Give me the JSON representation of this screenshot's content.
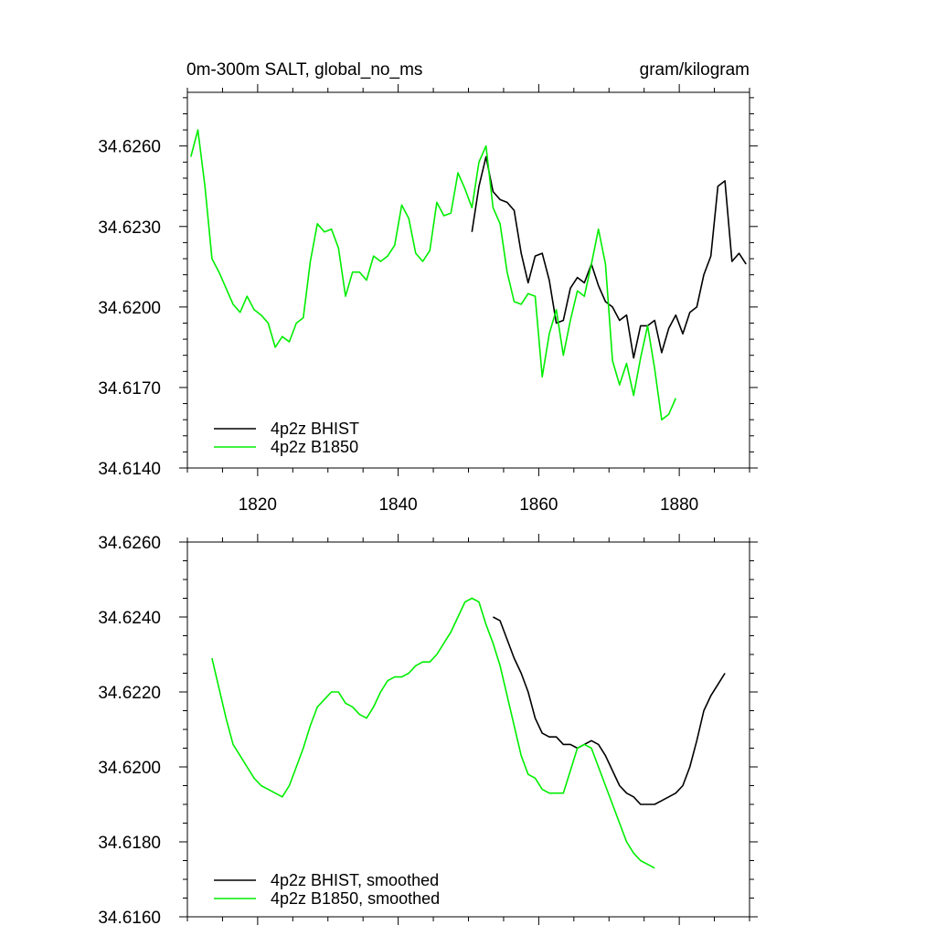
{
  "figure": {
    "title_left": "0m-300m SALT, global_no_ms",
    "title_right": "gram/kilogram"
  },
  "colors": {
    "bhist": "#000000",
    "b1850": "#00ee00",
    "axis": "#000000"
  },
  "chart_data": [
    {
      "type": "line",
      "title": "0m-300m SALT, global_no_ms",
      "units": "gram/kilogram",
      "xlim": [
        1810,
        1890
      ],
      "ylim": [
        34.614,
        34.628
      ],
      "x_ticks": [
        1820,
        1840,
        1860,
        1880
      ],
      "x_tick_labels": [
        "1820",
        "1840",
        "1860",
        "1880"
      ],
      "y_ticks": [
        34.614,
        34.617,
        34.62,
        34.623,
        34.626
      ],
      "y_tick_labels": [
        "34.6140",
        "34.6170",
        "34.6200",
        "34.6230",
        "34.6260"
      ],
      "legend": [
        "4p2z BHIST",
        "4p2z B1850"
      ],
      "legend_position": "bottom-left",
      "series": [
        {
          "name": "4p2z BHIST",
          "color": "#000000",
          "x": [
            1850.5,
            1851.5,
            1852.5,
            1853.5,
            1854.5,
            1855.5,
            1856.5,
            1857.5,
            1858.5,
            1859.5,
            1860.5,
            1861.5,
            1862.5,
            1863.5,
            1864.5,
            1865.5,
            1866.5,
            1867.5,
            1868.5,
            1869.5,
            1870.5,
            1871.5,
            1872.5,
            1873.5,
            1874.5,
            1875.5,
            1876.5,
            1877.5,
            1878.5,
            1879.5,
            1880.5,
            1881.5,
            1882.5,
            1883.5,
            1884.5,
            1885.5,
            1886.5,
            1887.5,
            1888.5,
            1889.5
          ],
          "values": [
            34.6228,
            34.6245,
            34.6256,
            34.6243,
            34.624,
            34.6239,
            34.6236,
            34.622,
            34.6209,
            34.6219,
            34.622,
            34.621,
            34.6194,
            34.6195,
            34.6207,
            34.6211,
            34.6209,
            34.6216,
            34.6208,
            34.6202,
            34.62,
            34.6195,
            34.6197,
            34.6181,
            34.6193,
            34.6193,
            34.6195,
            34.6183,
            34.6192,
            34.6197,
            34.619,
            34.6198,
            34.62,
            34.6212,
            34.6219,
            34.6245,
            34.6247,
            34.6217,
            34.622,
            34.6216
          ]
        },
        {
          "name": "4p2z B1850",
          "color": "#00ee00",
          "x": [
            1810.5,
            1811.5,
            1812.5,
            1813.5,
            1814.5,
            1815.5,
            1816.5,
            1817.5,
            1818.5,
            1819.5,
            1820.5,
            1821.5,
            1822.5,
            1823.5,
            1824.5,
            1825.5,
            1826.5,
            1827.5,
            1828.5,
            1829.5,
            1830.5,
            1831.5,
            1832.5,
            1833.5,
            1834.5,
            1835.5,
            1836.5,
            1837.5,
            1838.5,
            1839.5,
            1840.5,
            1841.5,
            1842.5,
            1843.5,
            1844.5,
            1845.5,
            1846.5,
            1847.5,
            1848.5,
            1849.5,
            1850.5,
            1851.5,
            1852.5,
            1853.5,
            1854.5,
            1855.5,
            1856.5,
            1857.5,
            1858.5,
            1859.5,
            1860.5,
            1861.5,
            1862.5,
            1863.5,
            1864.5,
            1865.5,
            1866.5,
            1867.5,
            1868.5,
            1869.5,
            1870.5,
            1871.5,
            1872.5,
            1873.5,
            1874.5,
            1875.5,
            1876.5,
            1877.5,
            1878.5,
            1879.5
          ],
          "values": [
            34.6256,
            34.6266,
            34.6245,
            34.6218,
            34.6213,
            34.6207,
            34.6201,
            34.6198,
            34.6204,
            34.6199,
            34.6197,
            34.6194,
            34.6185,
            34.6189,
            34.6187,
            34.6194,
            34.6196,
            34.6217,
            34.6231,
            34.6228,
            34.6229,
            34.6222,
            34.6204,
            34.6213,
            34.6213,
            34.621,
            34.6219,
            34.6217,
            34.6219,
            34.6223,
            34.6238,
            34.6233,
            34.622,
            34.6217,
            34.6221,
            34.6239,
            34.6234,
            34.6235,
            34.625,
            34.6244,
            34.6237,
            34.6254,
            34.626,
            34.6237,
            34.6231,
            34.6213,
            34.6202,
            34.6201,
            34.6205,
            34.6204,
            34.6174,
            34.619,
            34.6199,
            34.6182,
            34.6195,
            34.6206,
            34.6204,
            34.6216,
            34.6229,
            34.6216,
            34.618,
            34.6171,
            34.6179,
            34.6167,
            34.6181,
            34.6193,
            34.6177,
            34.6158,
            34.616,
            34.6166
          ]
        }
      ]
    },
    {
      "type": "line",
      "xlim": [
        1810,
        1890
      ],
      "ylim": [
        34.616,
        34.626
      ],
      "x_ticks": [
        1820,
        1840,
        1860,
        1880
      ],
      "x_tick_labels": [],
      "y_ticks": [
        34.616,
        34.618,
        34.62,
        34.622,
        34.624,
        34.626
      ],
      "y_tick_labels": [
        "34.6160",
        "34.6180",
        "34.6200",
        "34.6220",
        "34.6240",
        "34.6260"
      ],
      "legend": [
        "4p2z BHIST, smoothed",
        "4p2z B1850, smoothed"
      ],
      "legend_position": "bottom-left",
      "series": [
        {
          "name": "4p2z BHIST, smoothed",
          "color": "#000000",
          "x": [
            1853.5,
            1854.5,
            1855.5,
            1856.5,
            1857.5,
            1858.5,
            1859.5,
            1860.5,
            1861.5,
            1862.5,
            1863.5,
            1864.5,
            1865.5,
            1866.5,
            1867.5,
            1868.5,
            1869.5,
            1870.5,
            1871.5,
            1872.5,
            1873.5,
            1874.5,
            1875.5,
            1876.5,
            1877.5,
            1878.5,
            1879.5,
            1880.5,
            1881.5,
            1882.5,
            1883.5,
            1884.5,
            1885.5,
            1886.5
          ],
          "values": [
            34.624,
            34.6239,
            34.6234,
            34.6229,
            34.6225,
            34.622,
            34.6213,
            34.6209,
            34.6208,
            34.6208,
            34.6206,
            34.6206,
            34.6205,
            34.6206,
            34.6207,
            34.6206,
            34.6203,
            34.6199,
            34.6195,
            34.6193,
            34.6192,
            34.619,
            34.619,
            34.619,
            34.6191,
            34.6192,
            34.6193,
            34.6195,
            34.62,
            34.6207,
            34.6215,
            34.6219,
            34.6222,
            34.6225
          ]
        },
        {
          "name": "4p2z B1850, smoothed",
          "color": "#00ee00",
          "x": [
            1813.5,
            1814.5,
            1815.5,
            1816.5,
            1817.5,
            1818.5,
            1819.5,
            1820.5,
            1821.5,
            1822.5,
            1823.5,
            1824.5,
            1825.5,
            1826.5,
            1827.5,
            1828.5,
            1829.5,
            1830.5,
            1831.5,
            1832.5,
            1833.5,
            1834.5,
            1835.5,
            1836.5,
            1837.5,
            1838.5,
            1839.5,
            1840.5,
            1841.5,
            1842.5,
            1843.5,
            1844.5,
            1845.5,
            1846.5,
            1847.5,
            1848.5,
            1849.5,
            1850.5,
            1851.5,
            1852.5,
            1853.5,
            1854.5,
            1855.5,
            1856.5,
            1857.5,
            1858.5,
            1859.5,
            1860.5,
            1861.5,
            1862.5,
            1863.5,
            1864.5,
            1865.5,
            1866.5,
            1867.5,
            1868.5,
            1869.5,
            1870.5,
            1871.5,
            1872.5,
            1873.5,
            1874.5,
            1875.5,
            1876.5
          ],
          "values": [
            34.6229,
            34.6221,
            34.6213,
            34.6206,
            34.6203,
            34.62,
            34.6197,
            34.6195,
            34.6194,
            34.6193,
            34.6192,
            34.6195,
            34.62,
            34.6205,
            34.6211,
            34.6216,
            34.6218,
            34.622,
            34.622,
            34.6217,
            34.6216,
            34.6214,
            34.6213,
            34.6216,
            34.622,
            34.6223,
            34.6224,
            34.6224,
            34.6225,
            34.6227,
            34.6228,
            34.6228,
            34.623,
            34.6233,
            34.6236,
            34.624,
            34.6244,
            34.6245,
            34.6244,
            34.6238,
            34.6233,
            34.6227,
            34.6219,
            34.6211,
            34.6203,
            34.6198,
            34.6197,
            34.6194,
            34.6193,
            34.6193,
            34.6193,
            34.6199,
            34.6205,
            34.6206,
            34.6205,
            34.62,
            34.6195,
            34.619,
            34.6185,
            34.618,
            34.6177,
            34.6175,
            34.6174,
            34.6173
          ]
        }
      ]
    }
  ]
}
